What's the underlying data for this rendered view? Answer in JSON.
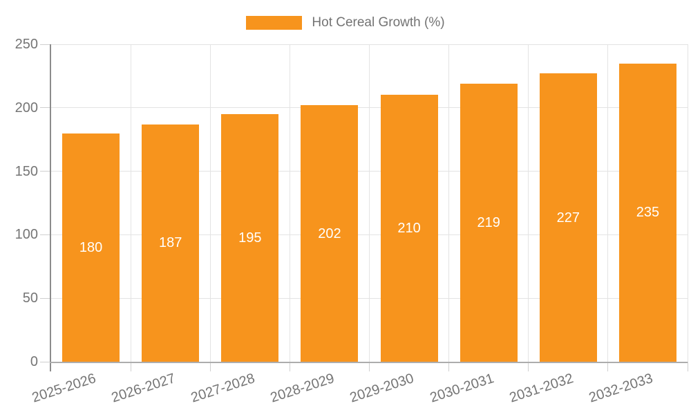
{
  "legend": {
    "items": [
      {
        "label": "Hot Cereal Growth (%)",
        "color": "#F7941D"
      }
    ]
  },
  "chart_data": {
    "type": "bar",
    "title": "Hot Cereal Growth (%)",
    "categories": [
      "2025-2026",
      "2026-2027",
      "2027-2028",
      "2028-2029",
      "2029-2030",
      "2030-2031",
      "2031-2032",
      "2032-2033"
    ],
    "series": [
      {
        "name": "Hot Cereal Growth (%)",
        "values": [
          180,
          187,
          195,
          202,
          210,
          219,
          227,
          235
        ]
      }
    ],
    "xlabel": "",
    "ylabel": "",
    "ylim": [
      0,
      250
    ],
    "y_ticks": [
      0,
      50,
      100,
      150,
      200,
      250
    ],
    "grid": true,
    "legend_position": "top-center",
    "value_label_position": "inside-center",
    "colors": {
      "bar": "#F7941D",
      "gridline": "#E3E3E3",
      "tick_mark": "#CFCFCF",
      "y_axis_line": "#8C8C8C",
      "x_axis_line": "#ADADAD",
      "tick_label": "#757575",
      "value_label": "#FFFFFF",
      "legend_text": "#737373",
      "background": "#FFFFFF"
    }
  }
}
